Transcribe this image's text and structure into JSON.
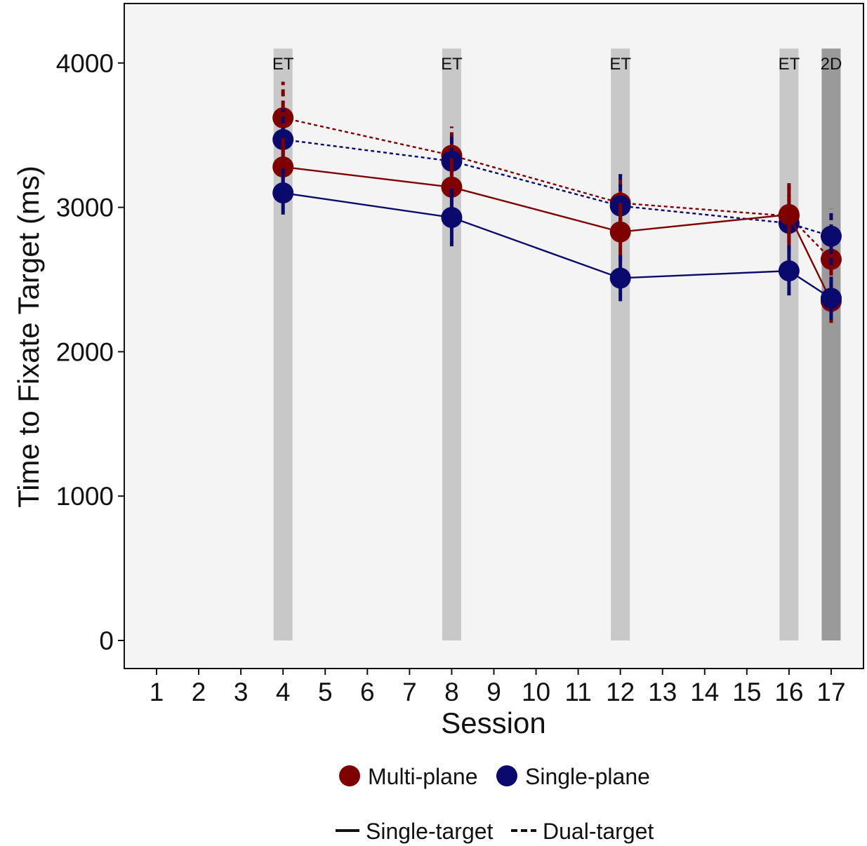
{
  "chart_data": {
    "type": "line",
    "title": "",
    "xlabel": "Session",
    "ylabel": "Time to Fixate Target (ms)",
    "x_ticks": [
      "1",
      "2",
      "3",
      "4",
      "5",
      "6",
      "7",
      "8",
      "9",
      "10",
      "11",
      "12",
      "13",
      "14",
      "15",
      "16",
      "17"
    ],
    "ylim": [
      -200,
      4400
    ],
    "y_ticks": [
      0,
      1000,
      2000,
      3000,
      4000
    ],
    "grid": false,
    "bands": [
      {
        "x": 4,
        "label": "ET",
        "color": "#c8c8c8"
      },
      {
        "x": 8,
        "label": "ET",
        "color": "#c8c8c8"
      },
      {
        "x": 12,
        "label": "ET",
        "color": "#c8c8c8"
      },
      {
        "x": 16,
        "label": "ET",
        "color": "#c8c8c8"
      },
      {
        "x": 17,
        "label": "2D",
        "color": "#9a9a9a"
      }
    ],
    "series": [
      {
        "plane": "Multi-plane",
        "target": "Dual-target",
        "color": "#7f0000",
        "dashed": true,
        "x": [
          4,
          8,
          12,
          16,
          17
        ],
        "y": [
          3620,
          3360,
          3030,
          2940,
          2640
        ],
        "err": [
          [
            3380,
            3870
          ],
          [
            3160,
            3560
          ],
          [
            2830,
            3230
          ],
          [
            2730,
            3170
          ],
          [
            2450,
            2830
          ]
        ]
      },
      {
        "plane": "Single-plane",
        "target": "Dual-target",
        "color": "#0a0a6e",
        "dashed": true,
        "x": [
          4,
          8,
          12,
          16,
          17
        ],
        "y": [
          3470,
          3320,
          3010,
          2890,
          2800
        ],
        "err": [
          [
            3270,
            3680
          ],
          [
            3130,
            3520
          ],
          [
            2800,
            3230
          ],
          [
            2690,
            3090
          ],
          [
            2600,
            2990
          ]
        ]
      },
      {
        "plane": "Multi-plane",
        "target": "Single-target",
        "color": "#7f0000",
        "dashed": false,
        "x": [
          4,
          8,
          12,
          16,
          17
        ],
        "y": [
          3280,
          3140,
          2830,
          2950,
          2350
        ],
        "err": [
          [
            3080,
            3480
          ],
          [
            2940,
            3340
          ],
          [
            2630,
            3030
          ],
          [
            2750,
            3150
          ],
          [
            2200,
            2500
          ]
        ]
      },
      {
        "plane": "Single-plane",
        "target": "Single-target",
        "color": "#0a0a6e",
        "dashed": false,
        "x": [
          4,
          8,
          12,
          16,
          17
        ],
        "y": [
          3100,
          2930,
          2510,
          2560,
          2370
        ],
        "err": [
          [
            2950,
            3270
          ],
          [
            2730,
            3130
          ],
          [
            2350,
            2670
          ],
          [
            2390,
            2730
          ],
          [
            2220,
            2520
          ]
        ]
      }
    ],
    "legend": {
      "placement": "bottom",
      "color_items": [
        {
          "label": "Multi-plane",
          "color": "#7f0000"
        },
        {
          "label": "Single-plane",
          "color": "#0a0a6e"
        }
      ],
      "linetype_items": [
        {
          "label": "Single-target",
          "dashed": false
        },
        {
          "label": "Dual-target",
          "dashed": true
        }
      ]
    },
    "panel_background": "#f4f4f4"
  }
}
